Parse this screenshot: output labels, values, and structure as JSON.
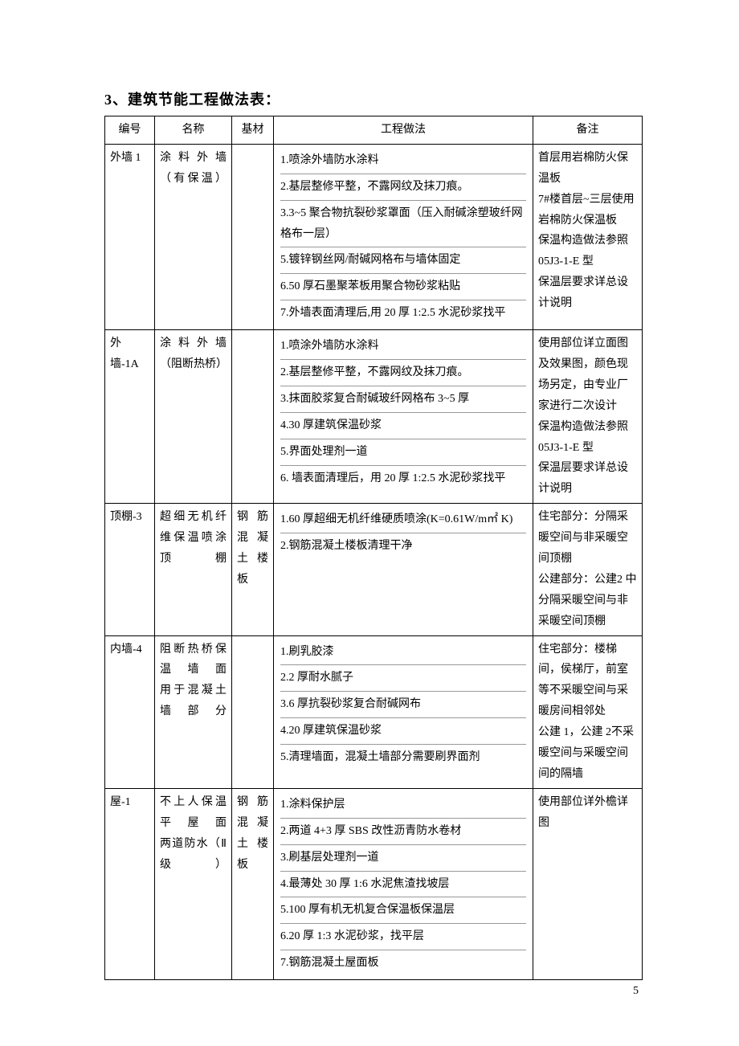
{
  "title": "3、建筑节能工程做法表：",
  "headers": {
    "id": "编号",
    "name": "名称",
    "base": "基材",
    "method": "工程做法",
    "note": "备注"
  },
  "rows": [
    {
      "id": "外墙 1",
      "name": "涂料外墙（有保温）",
      "base": "",
      "methods": [
        "1.喷涂外墙防水涂料",
        "2.基层整修平整，不露网纹及抹刀痕。",
        "3.3~5 聚合物抗裂砂浆罩面（压入耐碱涂塑玻纤网格布一层）",
        "5.镀锌钢丝网/耐碱网格布与墙体固定",
        "6.50 厚石墨聚苯板用聚合物砂浆粘贴",
        "7.外墙表面清理后,用 20 厚 1:2.5 水泥砂浆找平"
      ],
      "note": "首层用岩棉防火保温板\n7#楼首层~三层使用岩棉防火保温板\n保温构造做法参照 05J3-1-E 型\n保温层要求详总设计说明"
    },
    {
      "id": "外　墙-1A",
      "name": "涂料外墙（阻断热桥）",
      "base": "",
      "methods": [
        "1.喷涂外墙防水涂料",
        "2.基层整修平整，不露网纹及抹刀痕。",
        "3.抹面胶浆复合耐碱玻纤网格布 3~5 厚",
        "4.30 厚建筑保温砂浆",
        "5.界面处理剂一道",
        "6. 墙表面清理后，用 20 厚 1:2.5 水泥砂浆找平"
      ],
      "note": "使用部位详立面图及效果图，颜色现场另定，由专业厂家进行二次设计\n保温构造做法参照 05J3-1-E 型\n保温层要求详总设计说明"
    },
    {
      "id": "顶棚-3",
      "name": "超细无机纤维保温喷涂顶棚",
      "base": "钢筋混凝土楼板",
      "methods": [
        "1.60 厚超细无机纤维硬质喷涂(K=0.61W/m㎡ K)",
        "2.钢筋混凝土楼板清理干净"
      ],
      "note": "住宅部分：分隔采暖空间与非采暖空间顶棚\n公建部分：公建2 中分隔采暖空间与非采暖空间顶棚"
    },
    {
      "id": "内墙-4",
      "name": "阻断热桥保温墙面\n用于混凝土墙部分",
      "base": "",
      "methods": [
        "1.刷乳胶漆",
        "2.2 厚耐水腻子",
        "3.6 厚抗裂砂浆复合耐碱网布",
        "4.20 厚建筑保温砂浆",
        "5.清理墙面，混凝土墙部分需要刷界面剂"
      ],
      "note": "住宅部分：楼梯间，侯梯厅，前室等不采暖空间与采暖房间相邻处\n公建 1，公建 2不采暖空间与采暖空间间的隔墙"
    },
    {
      "id": "屋-1",
      "name": "不上人保温平屋面\n两道防水（Ⅱ级）",
      "base": "钢筋混凝土楼板",
      "methods": [
        "1.涂料保护层",
        "2.两道 4+3 厚 SBS 改性沥青防水卷材",
        "3.刷基层处理剂一道",
        "4.最薄处 30 厚 1:6 水泥焦渣找坡层",
        "5.100 厚有机无机复合保温板保温层",
        "6.20 厚 1:3 水泥砂浆，找平层",
        "7.钢筋混凝土屋面板"
      ],
      "note": "使用部位详外檐详图"
    }
  ],
  "page_number": "5"
}
